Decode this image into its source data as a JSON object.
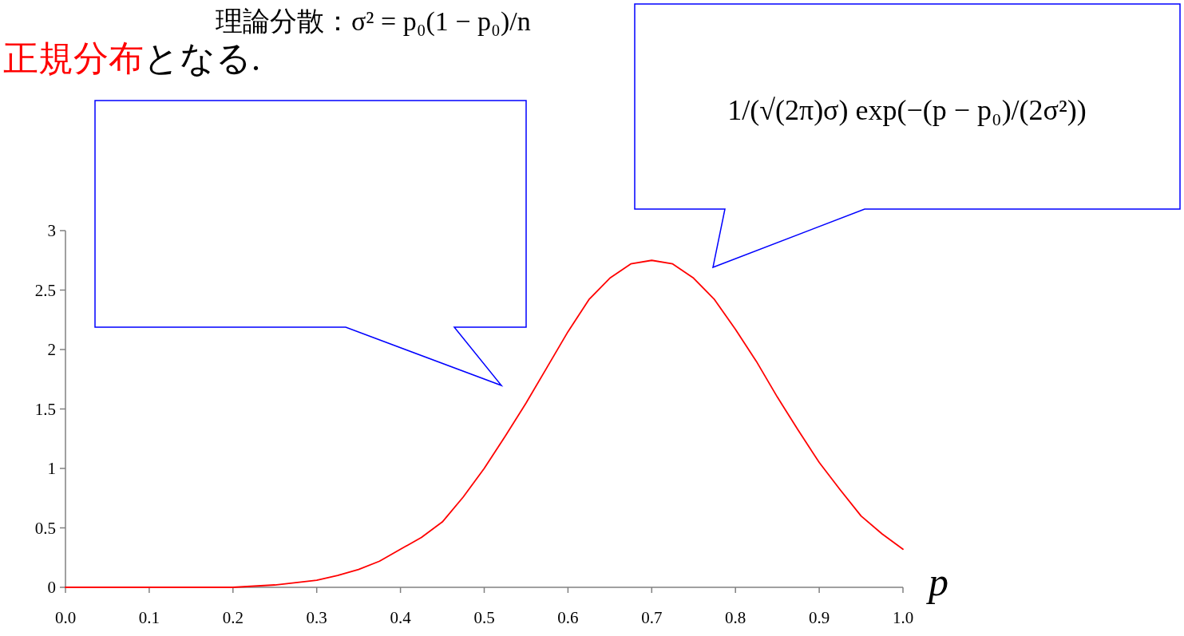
{
  "chart_data": {
    "type": "line",
    "xlabel": "p",
    "annotations": [
      "理論分散：σ² = p₀(1 − p₀)/n",
      "正規分布",
      "となる.",
      "1/(√(2π)σ) exp(−(p − p₀)/(2σ²))"
    ],
    "xlim": [
      0,
      1
    ],
    "ylim": [
      0,
      3
    ],
    "xticks": [
      {
        "value": 0,
        "label": "0.0"
      },
      {
        "value": 0.1,
        "label": "0.1"
      },
      {
        "value": 0.2,
        "label": "0.2"
      },
      {
        "value": 0.3,
        "label": "0.3"
      },
      {
        "value": 0.4,
        "label": "0.4"
      },
      {
        "value": 0.5,
        "label": "0.5"
      },
      {
        "value": 0.6,
        "label": "0.6"
      },
      {
        "value": 0.7,
        "label": "0.7"
      },
      {
        "value": 0.8,
        "label": "0.8"
      },
      {
        "value": 0.9,
        "label": "0.9"
      },
      {
        "value": 1.0,
        "label": "1.0"
      }
    ],
    "yticks": [
      0,
      0.5,
      1,
      1.5,
      2,
      2.5,
      3
    ],
    "grid": false,
    "series": [
      {
        "color": "#ff0000",
        "x": [
          0,
          0.1,
          0.2,
          0.25,
          0.3,
          0.325,
          0.35,
          0.375,
          0.4,
          0.425,
          0.45,
          0.475,
          0.5,
          0.525,
          0.55,
          0.575,
          0.6,
          0.625,
          0.65,
          0.675,
          0.7,
          0.725,
          0.75,
          0.775,
          0.8,
          0.825,
          0.85,
          0.875,
          0.9,
          0.925,
          0.95,
          0.975,
          1.0
        ],
        "values": [
          0,
          0,
          0,
          0.02,
          0.06,
          0.1,
          0.15,
          0.22,
          0.32,
          0.42,
          0.55,
          0.76,
          1.0,
          1.27,
          1.55,
          1.85,
          2.15,
          2.42,
          2.6,
          2.72,
          2.75,
          2.72,
          2.6,
          2.42,
          2.17,
          1.9,
          1.6,
          1.32,
          1.05,
          0.82,
          0.6,
          0.45,
          0.32
        ]
      }
    ]
  }
}
